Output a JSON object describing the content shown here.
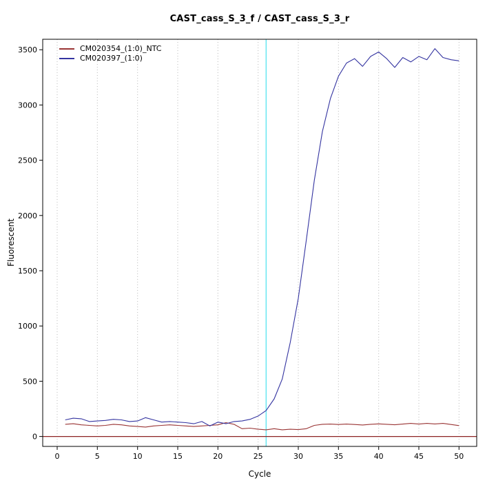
{
  "chart_data": {
    "type": "line",
    "title": "CAST_cass_S_3_f / CAST_cass_S_3_r",
    "xlabel": "Cycle",
    "ylabel": "Fluorescent",
    "x": [
      1,
      2,
      3,
      4,
      5,
      6,
      7,
      8,
      9,
      10,
      11,
      12,
      13,
      14,
      15,
      16,
      17,
      18,
      19,
      20,
      21,
      22,
      23,
      24,
      25,
      26,
      27,
      28,
      29,
      30,
      31,
      32,
      33,
      34,
      35,
      36,
      37,
      38,
      39,
      40,
      41,
      42,
      43,
      44,
      45,
      46,
      47,
      48,
      49,
      50
    ],
    "series": [
      {
        "name": "CM020354_(1:0)_NTC",
        "color": "#993333",
        "values": [
          110,
          115,
          105,
          100,
          95,
          100,
          110,
          105,
          95,
          90,
          85,
          95,
          100,
          105,
          100,
          95,
          90,
          95,
          100,
          105,
          125,
          110,
          70,
          75,
          65,
          60,
          70,
          60,
          65,
          62,
          70,
          100,
          110,
          112,
          108,
          112,
          108,
          104,
          110,
          114,
          110,
          106,
          112,
          118,
          112,
          118,
          113,
          118,
          108,
          98
        ]
      },
      {
        "name": "CM020397_(1:0)",
        "color": "#3333A0",
        "values": [
          150,
          165,
          160,
          135,
          140,
          145,
          155,
          150,
          135,
          140,
          170,
          150,
          130,
          135,
          130,
          125,
          115,
          135,
          95,
          130,
          115,
          135,
          140,
          155,
          185,
          235,
          340,
          520,
          850,
          1250,
          1780,
          2320,
          2760,
          3060,
          3260,
          3380,
          3420,
          3350,
          3440,
          3480,
          3420,
          3340,
          3430,
          3390,
          3440,
          3410,
          3510,
          3430,
          3410,
          3400
        ]
      }
    ],
    "x_ticks": [
      0,
      5,
      10,
      15,
      20,
      25,
      30,
      35,
      40,
      45,
      50
    ],
    "y_ticks": [
      0,
      500,
      1000,
      1500,
      2000,
      2500,
      3000,
      3500
    ],
    "xlim": [
      0,
      50
    ],
    "ylim": [
      0,
      3500
    ],
    "threshold_cycle": 26,
    "colors": {
      "threshold_line": "#55E4EF",
      "baseline": "#8B2222",
      "grid": "#B8B8B8",
      "axis": "#000000"
    },
    "grid": "vertical-dotted",
    "legend_position": "top-left"
  }
}
